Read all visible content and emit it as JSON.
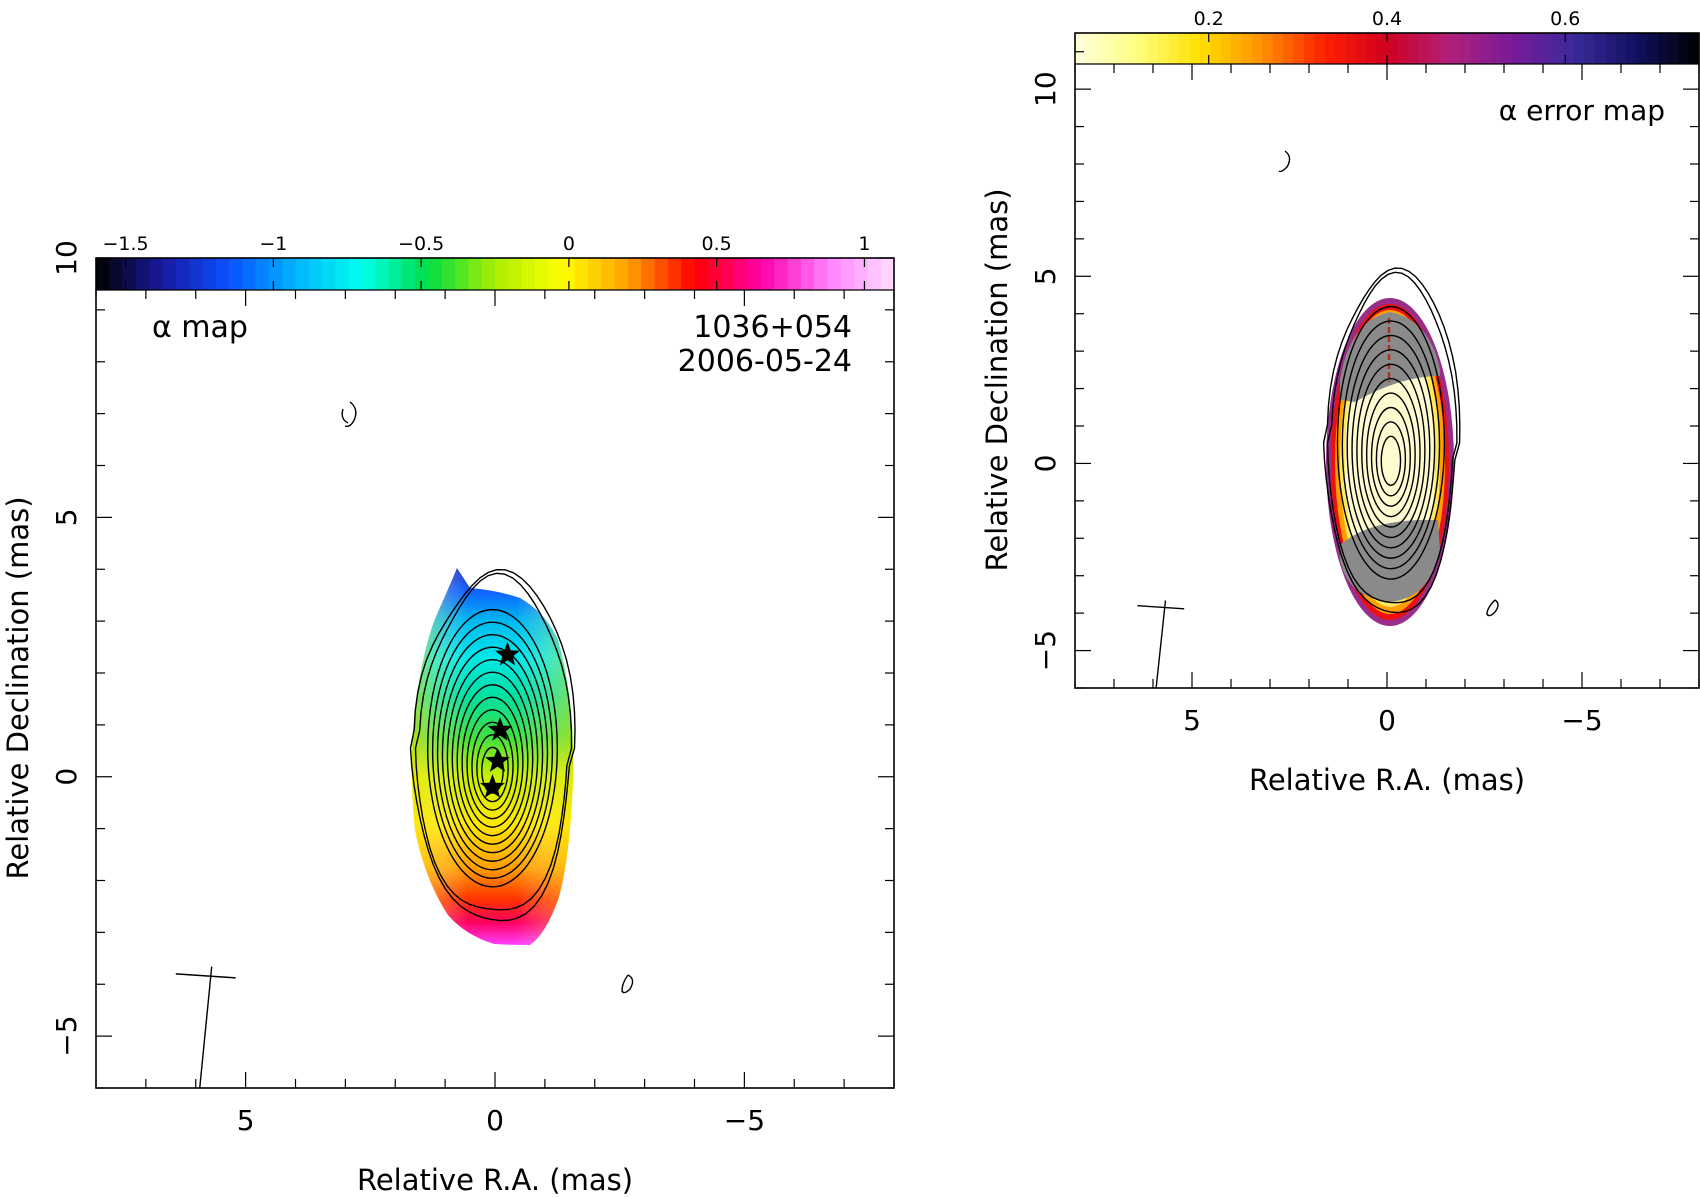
{
  "chart_data": [
    {
      "type": "heatmap",
      "title": "α map",
      "source_label": "1036+054",
      "date_label": "2006-05-24",
      "xlabel": "Relative R.A. (mas)",
      "ylabel": "Relative Declination (mas)",
      "xlim": [
        8,
        -8
      ],
      "ylim": [
        -6,
        10
      ],
      "xticks": [
        {
          "value": 5,
          "label": "5"
        },
        {
          "value": 0,
          "label": "0"
        },
        {
          "value": -5,
          "label": "−5"
        }
      ],
      "yticks": [
        {
          "value": -5,
          "label": "−5"
        },
        {
          "value": 0,
          "label": "0"
        },
        {
          "value": 5,
          "label": "5"
        },
        {
          "value": 10,
          "label": "10"
        }
      ],
      "colorbar": {
        "range": [
          -1.6,
          1.1
        ],
        "ticks": [
          {
            "value": -1.5,
            "label": "−1.5"
          },
          {
            "value": -1,
            "label": "−1"
          },
          {
            "value": -0.5,
            "label": "−0.5"
          },
          {
            "value": 0,
            "label": "0"
          },
          {
            "value": 0.5,
            "label": "0.5"
          },
          {
            "value": 1,
            "label": "1"
          }
        ],
        "colormap": [
          "#000000",
          "#1a1aa0",
          "#0a50ff",
          "#00b4ff",
          "#00ffee",
          "#00dd44",
          "#aaee00",
          "#ffff00",
          "#ffa000",
          "#ff0000",
          "#ff00aa",
          "#ff80ff",
          "#ffddff"
        ]
      },
      "component_markers": [
        {
          "ra": -0.25,
          "dec": 2.35
        },
        {
          "ra": -0.1,
          "dec": 0.9
        },
        {
          "ra": -0.05,
          "dec": 0.3
        },
        {
          "ra": 0.05,
          "dec": -0.2
        }
      ],
      "beam": {
        "ra": 5.8,
        "dec": -3.8
      },
      "grid": false
    },
    {
      "type": "heatmap",
      "title": "α error map",
      "xlabel": "Relative R.A. (mas)",
      "ylabel": "Relative Declination (mas)",
      "xlim": [
        8,
        -8
      ],
      "ylim": [
        -6,
        11.5
      ],
      "xticks": [
        {
          "value": 5,
          "label": "5"
        },
        {
          "value": 0,
          "label": "0"
        },
        {
          "value": -5,
          "label": "−5"
        }
      ],
      "yticks": [
        {
          "value": -5,
          "label": "−5"
        },
        {
          "value": 0,
          "label": "0"
        },
        {
          "value": 5,
          "label": "5"
        },
        {
          "value": 10,
          "label": "10"
        }
      ],
      "colorbar": {
        "range": [
          0.05,
          0.75
        ],
        "ticks": [
          {
            "value": 0.2,
            "label": "0.2"
          },
          {
            "value": 0.4,
            "label": "0.4"
          },
          {
            "value": 0.6,
            "label": "0.6"
          }
        ],
        "colormap": [
          "#ffffe0",
          "#ffff80",
          "#ffe000",
          "#ff9000",
          "#ff2000",
          "#d00020",
          "#b0207a",
          "#7a1a9a",
          "#3a2a9a",
          "#101060",
          "#000000"
        ]
      },
      "beam": {
        "ra": 5.8,
        "dec": -3.8
      },
      "grid": false
    }
  ]
}
